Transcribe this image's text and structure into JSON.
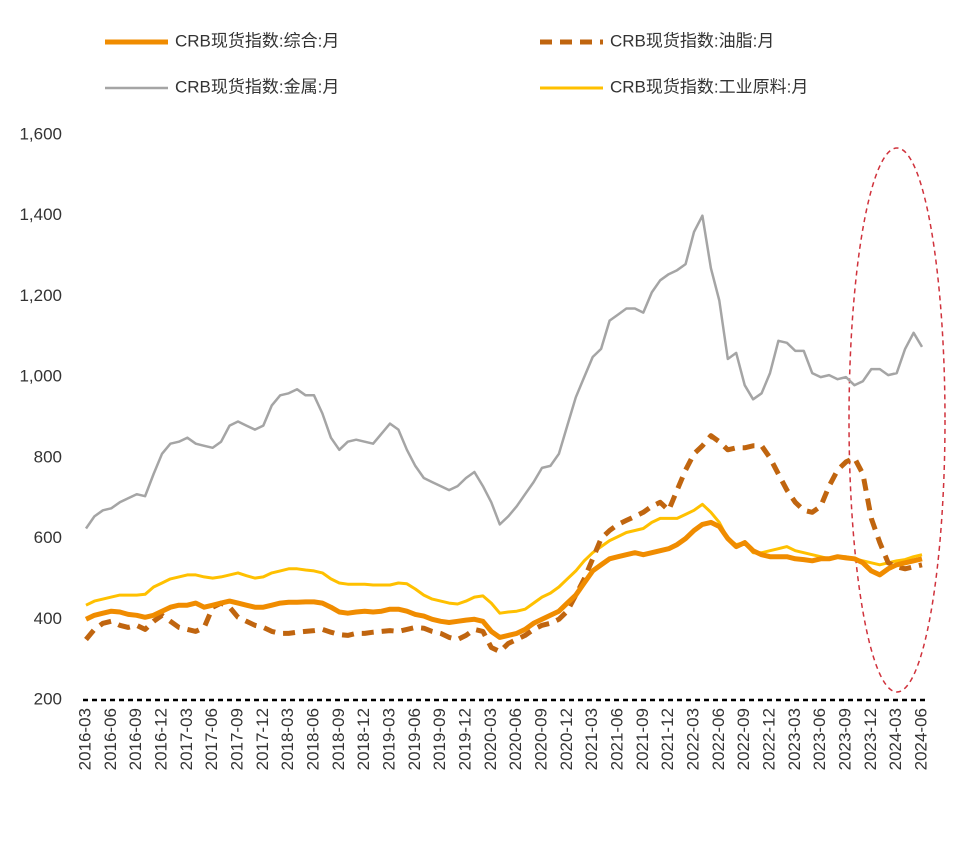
{
  "chart_data": {
    "type": "line",
    "categories": [
      "2016-03",
      null,
      null,
      "2016-06",
      null,
      null,
      "2016-09",
      null,
      null,
      "2016-12",
      null,
      null,
      "2017-03",
      null,
      null,
      "2017-06",
      null,
      null,
      "2017-09",
      null,
      null,
      "2017-12",
      null,
      null,
      "2018-03",
      null,
      null,
      "2018-06",
      null,
      null,
      "2018-09",
      null,
      null,
      "2018-12",
      null,
      null,
      "2019-03",
      null,
      null,
      "2019-06",
      null,
      null,
      "2019-09",
      null,
      null,
      "2019-12",
      null,
      null,
      "2020-03",
      null,
      null,
      "2020-06",
      null,
      null,
      "2020-09",
      null,
      null,
      "2020-12",
      null,
      null,
      "2021-03",
      null,
      null,
      "2021-06",
      null,
      null,
      "2021-09",
      null,
      null,
      "2021-12",
      null,
      null,
      "2022-03",
      null,
      null,
      "2022-06",
      null,
      null,
      "2022-09",
      null,
      null,
      "2022-12",
      null,
      null,
      "2023-03",
      null,
      null,
      "2023-06",
      null,
      null,
      "2023-09",
      null,
      null,
      "2023-12",
      null,
      null,
      "2024-03",
      null,
      null,
      "2024-06"
    ],
    "series": [
      {
        "name": "CRB现货指数:综合:月",
        "color": "#f08c00",
        "values": [
          400,
          410,
          415,
          420,
          418,
          412,
          410,
          405,
          410,
          420,
          430,
          435,
          435,
          440,
          430,
          435,
          440,
          445,
          440,
          435,
          430,
          430,
          435,
          440,
          442,
          442,
          443,
          443,
          440,
          430,
          418,
          415,
          418,
          420,
          418,
          420,
          425,
          425,
          420,
          412,
          408,
          400,
          395,
          392,
          395,
          398,
          400,
          395,
          370,
          355,
          360,
          365,
          375,
          390,
          400,
          410,
          420,
          440,
          460,
          490,
          520,
          535,
          550,
          555,
          560,
          565,
          560,
          565,
          570,
          575,
          585,
          600,
          620,
          635,
          640,
          630,
          600,
          580,
          590,
          570,
          560,
          555,
          555,
          555,
          550,
          548,
          545,
          550,
          550,
          555,
          552,
          550,
          540,
          520,
          510,
          525,
          535,
          540,
          545,
          550
        ]
      },
      {
        "name": "CRB现货指数:油脂:月",
        "color": "#c0650f",
        "dashed": true,
        "values": [
          350,
          375,
          390,
          395,
          385,
          380,
          385,
          375,
          395,
          410,
          395,
          380,
          375,
          370,
          380,
          430,
          440,
          430,
          405,
          395,
          385,
          380,
          370,
          365,
          365,
          368,
          370,
          372,
          375,
          368,
          362,
          360,
          365,
          365,
          368,
          370,
          372,
          370,
          375,
          380,
          378,
          370,
          365,
          355,
          350,
          360,
          375,
          370,
          330,
          320,
          340,
          350,
          360,
          375,
          385,
          390,
          400,
          420,
          460,
          500,
          550,
          600,
          620,
          635,
          645,
          655,
          665,
          680,
          690,
          670,
          720,
          770,
          810,
          830,
          855,
          840,
          820,
          825,
          825,
          830,
          830,
          800,
          760,
          720,
          690,
          670,
          665,
          680,
          730,
          770,
          790,
          800,
          760,
          650,
          590,
          540,
          530,
          525,
          530,
          535
        ]
      },
      {
        "name": "CRB现货指数:金属:月",
        "color": "#a5a5a5",
        "values": [
          625,
          655,
          670,
          675,
          690,
          700,
          710,
          705,
          760,
          810,
          835,
          840,
          850,
          835,
          830,
          825,
          840,
          880,
          890,
          880,
          870,
          880,
          930,
          955,
          960,
          970,
          955,
          955,
          910,
          850,
          820,
          840,
          845,
          840,
          835,
          860,
          885,
          870,
          820,
          780,
          750,
          740,
          730,
          720,
          730,
          750,
          765,
          730,
          690,
          635,
          655,
          680,
          710,
          740,
          775,
          780,
          810,
          880,
          950,
          1000,
          1050,
          1070,
          1140,
          1155,
          1170,
          1170,
          1160,
          1210,
          1240,
          1255,
          1265,
          1280,
          1360,
          1400,
          1270,
          1190,
          1045,
          1060,
          980,
          945,
          960,
          1010,
          1090,
          1085,
          1065,
          1065,
          1010,
          1000,
          1005,
          995,
          1000,
          980,
          990,
          1020,
          1020,
          1005,
          1010,
          1070,
          1110,
          1075
        ]
      },
      {
        "name": "CRB现货指数:工业原料:月",
        "color": "#ffc000",
        "values": [
          435,
          445,
          450,
          455,
          460,
          460,
          460,
          462,
          480,
          490,
          500,
          505,
          510,
          510,
          505,
          502,
          505,
          510,
          515,
          508,
          502,
          505,
          515,
          520,
          525,
          525,
          522,
          520,
          515,
          500,
          490,
          487,
          487,
          487,
          485,
          485,
          485,
          490,
          488,
          475,
          460,
          450,
          445,
          440,
          438,
          445,
          455,
          458,
          440,
          415,
          418,
          420,
          425,
          440,
          455,
          465,
          480,
          500,
          520,
          545,
          565,
          580,
          595,
          605,
          615,
          620,
          625,
          640,
          650,
          650,
          650,
          660,
          670,
          685,
          665,
          640,
          600,
          585,
          590,
          565,
          565,
          570,
          575,
          580,
          570,
          565,
          560,
          555,
          550,
          555,
          555,
          550,
          545,
          540,
          535,
          540,
          545,
          548,
          555,
          560
        ]
      }
    ],
    "ylim": [
      200,
      1600
    ],
    "yticks": [
      200,
      400,
      600,
      800,
      {
        "value": 1000,
        "label": "1,000"
      },
      {
        "value": 1200,
        "label": "1,200"
      },
      {
        "value": 1400,
        "label": "1,400"
      },
      {
        "value": 1600,
        "label": "1,600"
      }
    ]
  }
}
